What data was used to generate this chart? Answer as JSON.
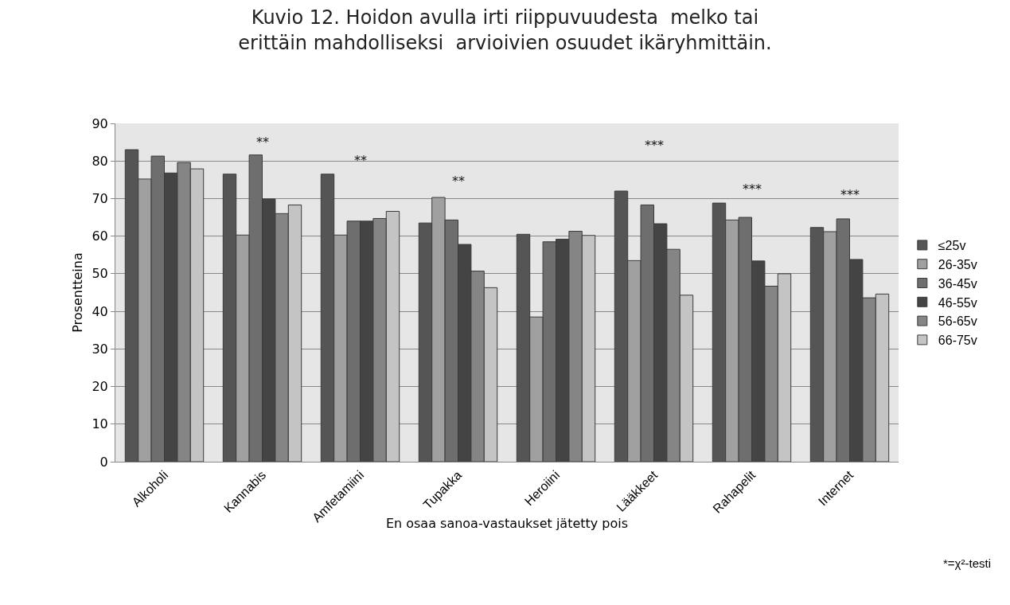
{
  "chart_data": {
    "type": "bar",
    "title": "Kuvio 12. Hoidon avulla irti riippuvuudesta  melko tai erittäin mahdolliseksi  arvioivien osuudet ikäryhmittäin.",
    "xlabel": "En osaa sanoa-vastaukset jätetty pois",
    "ylabel": "Prosentteina",
    "categories": [
      "Alkoholi",
      "Kannabis",
      "Amfetamiini",
      "Tupakka",
      "Heroiini",
      "Lääkkeet",
      "Rahapelit",
      "Internet"
    ],
    "series": [
      {
        "name": "≤25v",
        "color": "#555555",
        "values": [
          83,
          76.5,
          76.5,
          63.5,
          60.5,
          72,
          68.8,
          62.3
        ]
      },
      {
        "name": "26-35v",
        "color": "#a0a0a0",
        "values": [
          75.2,
          60.3,
          60.3,
          70.3,
          38.5,
          53.5,
          64.3,
          61.2
        ]
      },
      {
        "name": "36-45v",
        "color": "#6e6e6e",
        "values": [
          81.3,
          81.6,
          64,
          64.3,
          58.5,
          68.3,
          65,
          64.6
        ]
      },
      {
        "name": "46-55v",
        "color": "#444444",
        "values": [
          76.8,
          69.9,
          64,
          57.8,
          59.2,
          63.3,
          53.4,
          53.8
        ]
      },
      {
        "name": "56-65v",
        "color": "#858585",
        "values": [
          79.6,
          66,
          64.7,
          50.7,
          61.3,
          56.5,
          46.7,
          43.6
        ]
      },
      {
        "name": "66-75v",
        "color": "#c4c4c4",
        "values": [
          77.9,
          68.3,
          66.6,
          46.3,
          60.2,
          44.3,
          50,
          44.6
        ]
      }
    ],
    "annotations": [
      "**",
      "**",
      "**",
      "***",
      "***",
      "***",
      "*=χ²-testi"
    ],
    "ylim": [
      0,
      90
    ],
    "yticks": [
      0,
      10,
      20,
      30,
      40,
      50,
      60,
      70,
      80,
      90
    ],
    "grid": "y",
    "legend": "right"
  }
}
